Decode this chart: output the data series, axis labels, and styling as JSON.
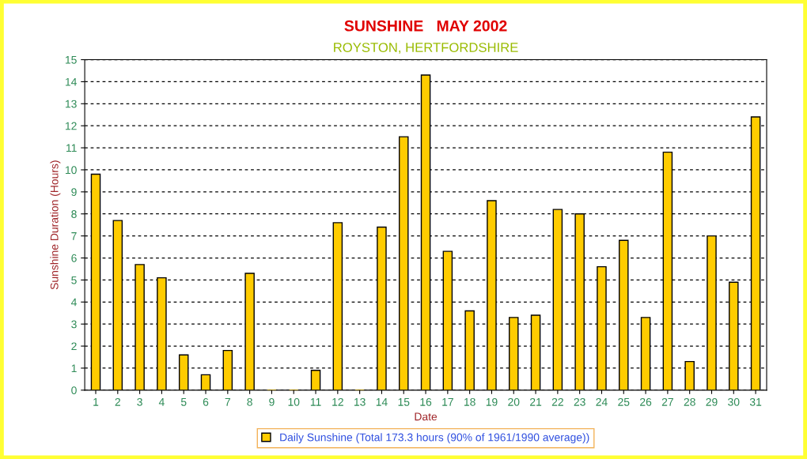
{
  "chart_data": {
    "type": "bar",
    "title": "SUNSHINE   MAY 2002",
    "subtitle": "ROYSTON, HERTFORDSHIRE",
    "xlabel": "Date",
    "ylabel": "Sunshine Duration (Hours)",
    "categories": [
      "1",
      "2",
      "3",
      "4",
      "5",
      "6",
      "7",
      "8",
      "9",
      "10",
      "11",
      "12",
      "13",
      "14",
      "15",
      "16",
      "17",
      "18",
      "19",
      "20",
      "21",
      "22",
      "23",
      "24",
      "25",
      "26",
      "27",
      "28",
      "29",
      "30",
      "31"
    ],
    "series": [
      {
        "name": "Daily Sunshine (Total 173.3 hours (90% of 1961/1990 average))",
        "color": "#ffcc00",
        "values": [
          9.8,
          7.7,
          5.7,
          5.1,
          1.6,
          0.7,
          1.8,
          5.3,
          0,
          0,
          0.9,
          7.6,
          0,
          7.4,
          11.5,
          14.3,
          6.3,
          3.6,
          8.6,
          3.3,
          3.4,
          8.2,
          8.0,
          5.6,
          6.8,
          3.3,
          10.8,
          1.3,
          7.0,
          4.9,
          12.4
        ]
      }
    ],
    "ylim": [
      0,
      15
    ],
    "yticks": [
      0,
      1,
      2,
      3,
      4,
      5,
      6,
      7,
      8,
      9,
      10,
      11,
      12,
      13,
      14,
      15
    ],
    "grid": "y",
    "legend": "bottom"
  }
}
